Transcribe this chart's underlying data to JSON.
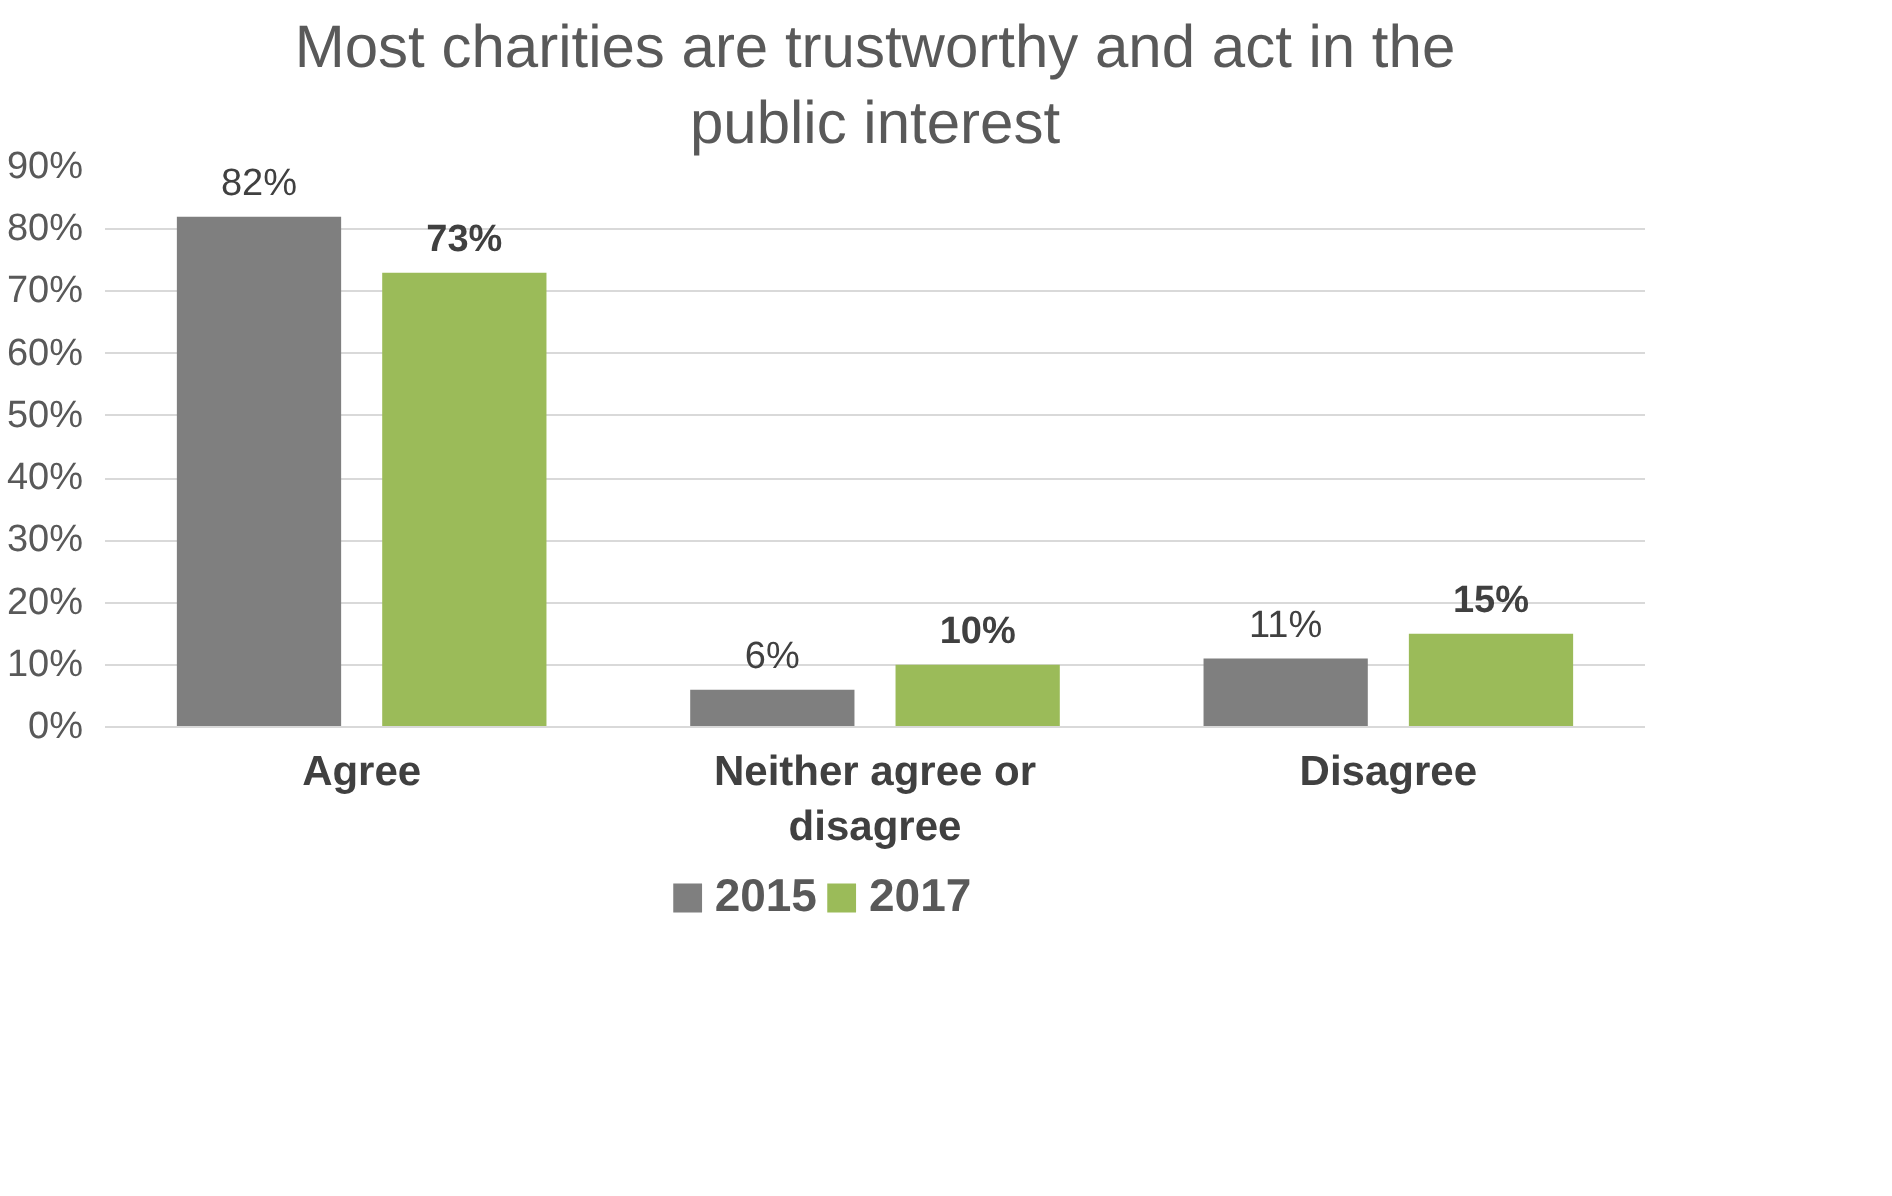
{
  "chart_data": {
    "type": "bar",
    "title": "Most charities are trustworthy and act in the public interest",
    "categories": [
      "Agree",
      "Neither agree or disagree",
      "Disagree"
    ],
    "series": [
      {
        "name": "2015",
        "color": "#7f7f7f",
        "values": [
          82,
          6,
          11
        ],
        "value_labels": [
          "82%",
          "6%",
          "11%"
        ]
      },
      {
        "name": "2017",
        "color": "#9bbb59",
        "values": [
          73,
          10,
          15
        ],
        "value_labels": [
          "73%",
          "10%",
          "15%"
        ]
      }
    ],
    "ylim": [
      0,
      90
    ],
    "yticks": [
      {
        "value": 0,
        "label": "0%"
      },
      {
        "value": 10,
        "label": "10%"
      },
      {
        "value": 20,
        "label": "20%"
      },
      {
        "value": 30,
        "label": "30%"
      },
      {
        "value": 40,
        "label": "40%"
      },
      {
        "value": 50,
        "label": "50%"
      },
      {
        "value": 60,
        "label": "60%"
      },
      {
        "value": 70,
        "label": "70%"
      },
      {
        "value": 80,
        "label": "80%"
      },
      {
        "value": 90,
        "label": "90%"
      }
    ],
    "grid": "y",
    "legend": "bottom"
  }
}
